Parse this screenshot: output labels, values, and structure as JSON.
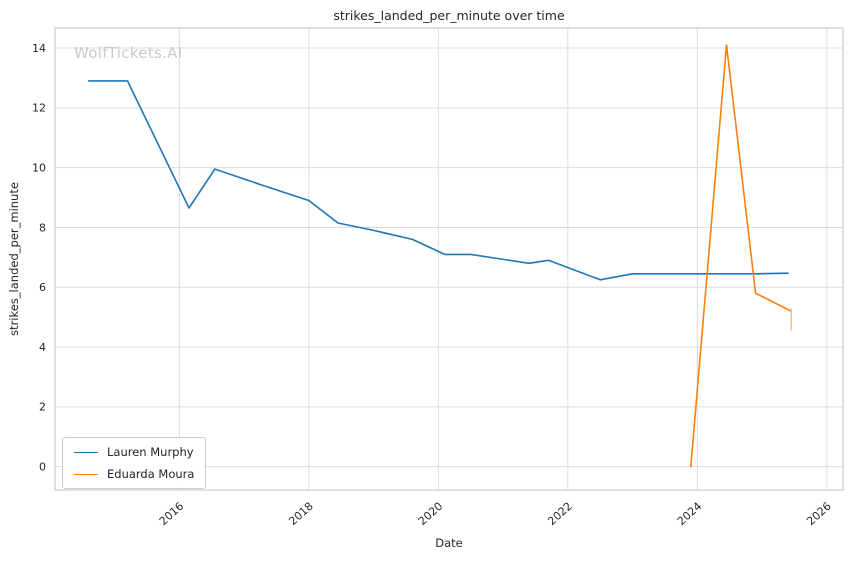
{
  "chart_data": {
    "type": "line",
    "title": "strikes_landed_per_minute over time",
    "xlabel": "Date",
    "ylabel": "strikes_landed_per_minute",
    "watermark": "WolfTickets.AI",
    "xlim": [
      2014.08,
      2026.25
    ],
    "ylim": [
      -0.78,
      14.67
    ],
    "xticks": [
      2016,
      2018,
      2020,
      2022,
      2024,
      2026
    ],
    "yticks": [
      0,
      2,
      4,
      6,
      8,
      10,
      12,
      14
    ],
    "grid": true,
    "grid_color": "#dcdcdc",
    "spine_color": "#cccccc",
    "legend_position": "lower left",
    "series": [
      {
        "name": "Lauren Murphy",
        "color": "#1f77b4",
        "points": [
          [
            2014.6,
            12.9
          ],
          [
            2015.2,
            12.9
          ],
          [
            2016.15,
            8.65
          ],
          [
            2016.55,
            9.95
          ],
          [
            2017.3,
            9.4
          ],
          [
            2018.0,
            8.9
          ],
          [
            2018.45,
            8.15
          ],
          [
            2019.0,
            7.9
          ],
          [
            2019.6,
            7.6
          ],
          [
            2020.1,
            7.1
          ],
          [
            2020.5,
            7.1
          ],
          [
            2021.4,
            6.8
          ],
          [
            2021.7,
            6.9
          ],
          [
            2022.5,
            6.25
          ],
          [
            2023.0,
            6.45
          ],
          [
            2024.0,
            6.45
          ],
          [
            2024.9,
            6.45
          ],
          [
            2025.4,
            6.47
          ]
        ]
      },
      {
        "name": "Eduarda Moura",
        "color": "#ff7f0e",
        "points": [
          [
            2023.9,
            0.0
          ],
          [
            2024.45,
            14.1
          ],
          [
            2024.9,
            5.8
          ],
          [
            2025.45,
            5.2
          ]
        ]
      }
    ],
    "end_cap": {
      "series": "Eduarda Moura",
      "x": 2025.45,
      "y_from": 4.55,
      "y_to": 5.3,
      "color": "#ffbb78"
    }
  }
}
